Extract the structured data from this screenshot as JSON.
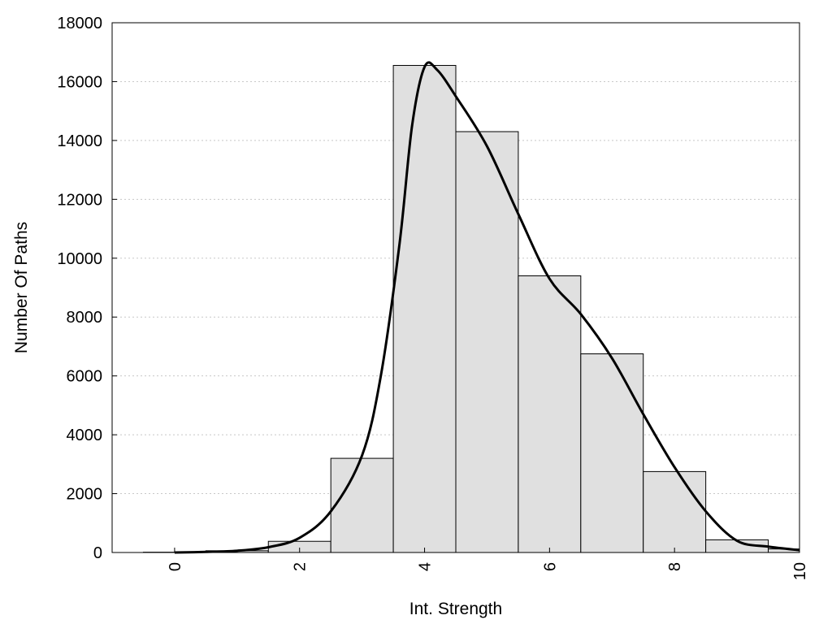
{
  "chart_data": {
    "type": "bar",
    "title": "",
    "xlabel": "Int. Strength",
    "ylabel": "Number Of Paths",
    "xlim": [
      -1,
      10
    ],
    "ylim": [
      0,
      18000
    ],
    "x_ticks": [
      0,
      2,
      4,
      6,
      8,
      10
    ],
    "y_ticks": [
      0,
      2000,
      4000,
      6000,
      8000,
      10000,
      12000,
      14000,
      16000,
      18000
    ],
    "grid": "horizontal dotted",
    "legend": "none",
    "bar_width": 1,
    "x": [
      0,
      1,
      2,
      3,
      4,
      5,
      6,
      7,
      8,
      9,
      10
    ],
    "values": [
      10,
      60,
      380,
      3200,
      16550,
      14300,
      9400,
      6750,
      2750,
      430,
      120
    ],
    "curve": {
      "x": [
        0,
        0.5,
        1,
        1.5,
        2,
        2.5,
        3,
        3.3,
        3.6,
        3.8,
        4.0,
        4.2,
        4.5,
        5.0,
        5.5,
        6.0,
        6.5,
        7.0,
        7.5,
        8.0,
        8.5,
        9.0,
        9.5,
        10
      ],
      "y": [
        0,
        20,
        60,
        180,
        500,
        1400,
        3300,
        6000,
        10500,
        14500,
        16500,
        16400,
        15500,
        13800,
        11500,
        9300,
        8100,
        6600,
        4700,
        2900,
        1400,
        400,
        200,
        80
      ]
    },
    "colors": {
      "bar_fill": "#e0e0e0",
      "bar_stroke": "#000000",
      "curve": "#000000",
      "grid": "#c8c8c8"
    }
  }
}
